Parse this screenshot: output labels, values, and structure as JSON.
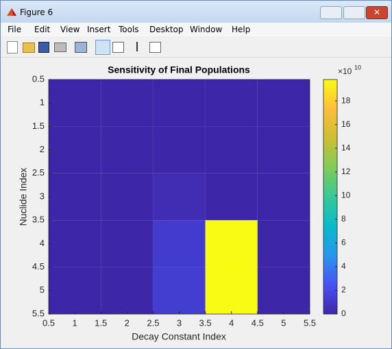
{
  "window": {
    "title": "Figure 6",
    "menu": [
      "File",
      "Edit",
      "View",
      "Insert",
      "Tools",
      "Desktop",
      "Window",
      "Help"
    ]
  },
  "chart_data": {
    "type": "heatmap",
    "title": "Sensitivity of Final Populations",
    "x_label": "Decay Constant Index",
    "y_label": "Nuclide Index",
    "xlim": [
      0.5,
      5.5
    ],
    "ylim": [
      0.5,
      5.5
    ],
    "y_reversed": true,
    "xticks": [
      0.5,
      1,
      1.5,
      2,
      2.5,
      3,
      3.5,
      4,
      4.5,
      5,
      5.5
    ],
    "yticks": [
      0.5,
      1,
      1.5,
      2,
      2.5,
      3,
      3.5,
      4,
      4.5,
      5,
      5.5
    ],
    "values": [
      [
        0,
        0,
        0,
        0,
        0
      ],
      [
        0,
        0,
        0,
        0,
        0
      ],
      [
        0,
        0,
        0.4,
        0,
        0
      ],
      [
        0,
        0,
        1.2,
        19.8,
        0
      ],
      [
        0,
        0,
        1.3,
        19.8,
        0
      ]
    ],
    "colormap": "parula",
    "clim": [
      0,
      19.8
    ],
    "cbar_ticks": [
      0,
      2,
      4,
      6,
      8,
      10,
      12,
      14,
      16,
      18
    ],
    "cbar_exponent": {
      "base": "×10",
      "power": "10"
    }
  }
}
